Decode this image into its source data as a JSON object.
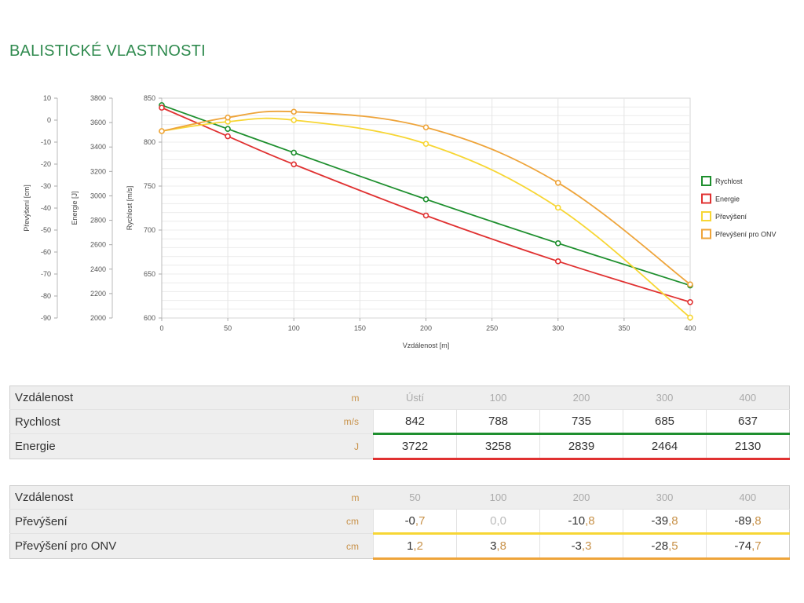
{
  "page": {
    "title": "BALISTICKÉ VLASTNOSTI"
  },
  "colors": {
    "rychlost": "#1e8f2e",
    "energie": "#e03131",
    "prevyseni": "#f7d634",
    "onv": "#eea43a",
    "title": "#2f8a4e",
    "unit": "#c8924a"
  },
  "chart_data": {
    "type": "line",
    "xlabel": "Vzdálenost [m]",
    "xlim": [
      0,
      400
    ],
    "x_ticks": [
      "0",
      "50",
      "100",
      "150",
      "200",
      "250",
      "300",
      "350",
      "400"
    ],
    "axes": {
      "prevyseni": {
        "label": "Převýšení [cm]",
        "range": [
          -90,
          10
        ],
        "ticks": [
          "10",
          "0",
          "-10",
          "-20",
          "-30",
          "-40",
          "-50",
          "-60",
          "-70",
          "-80",
          "-90"
        ]
      },
      "energie": {
        "label": "Energie [J]",
        "range": [
          2000,
          3800
        ],
        "ticks": [
          "3800",
          "3600",
          "3400",
          "3200",
          "3000",
          "2800",
          "2600",
          "2400",
          "2200",
          "2000"
        ]
      },
      "rychlost": {
        "label": "Rychlost [m/s]",
        "range": [
          600,
          850
        ],
        "ticks": [
          "850",
          "800",
          "750",
          "700",
          "650",
          "600"
        ]
      }
    },
    "series": [
      {
        "name": "Rychlost",
        "axis": "rychlost",
        "x": [
          0,
          50,
          100,
          200,
          300,
          400
        ],
        "values": [
          842,
          815,
          788,
          735,
          685,
          637
        ]
      },
      {
        "name": "Energie",
        "axis": "energie",
        "x": [
          0,
          50,
          100,
          200,
          300,
          400
        ],
        "values": [
          3722,
          3488,
          3258,
          2839,
          2464,
          2130
        ]
      },
      {
        "name": "Převýšení",
        "axis": "prevyseni",
        "x": [
          0,
          50,
          100,
          200,
          300,
          400
        ],
        "values": [
          -5.0,
          -0.7,
          0.0,
          -10.8,
          -39.8,
          -89.8
        ]
      },
      {
        "name": "Převýšení pro ONV",
        "axis": "prevyseni",
        "x": [
          0,
          50,
          100,
          200,
          300,
          400
        ],
        "values": [
          -5.0,
          1.2,
          3.8,
          -3.3,
          -28.5,
          -74.7
        ]
      }
    ],
    "grid": true,
    "legend": "right"
  },
  "table1": {
    "header": {
      "label": "Vzdálenost",
      "unit": "m",
      "cols": [
        "Ústí",
        "100",
        "200",
        "300",
        "400"
      ]
    },
    "rows": [
      {
        "label": "Rychlost",
        "unit": "m/s",
        "cells": [
          {
            "int": "842"
          },
          {
            "int": "788"
          },
          {
            "int": "735"
          },
          {
            "int": "685"
          },
          {
            "int": "637"
          }
        ]
      },
      {
        "label": "Energie",
        "unit": "J",
        "cells": [
          {
            "int": "3722"
          },
          {
            "int": "3258"
          },
          {
            "int": "2839"
          },
          {
            "int": "2464"
          },
          {
            "int": "2130"
          }
        ]
      }
    ]
  },
  "table2": {
    "header": {
      "label": "Vzdálenost",
      "unit": "m",
      "cols": [
        "50",
        "100",
        "200",
        "300",
        "400"
      ]
    },
    "rows": [
      {
        "label": "Převýšení",
        "unit": "cm",
        "cells": [
          {
            "int": "-0",
            "dec": ",7"
          },
          {
            "int": "0",
            "dec": ",0",
            "muted": true
          },
          {
            "int": "-10",
            "dec": ",8"
          },
          {
            "int": "-39",
            "dec": ",8"
          },
          {
            "int": "-89",
            "dec": ",8"
          }
        ]
      },
      {
        "label": "Převýšení pro ONV",
        "unit": "cm",
        "cells": [
          {
            "int": "1",
            "dec": ",2"
          },
          {
            "int": "3",
            "dec": ",8"
          },
          {
            "int": "-3",
            "dec": ",3"
          },
          {
            "int": "-28",
            "dec": ",5"
          },
          {
            "int": "-74",
            "dec": ",7"
          }
        ]
      }
    ]
  }
}
